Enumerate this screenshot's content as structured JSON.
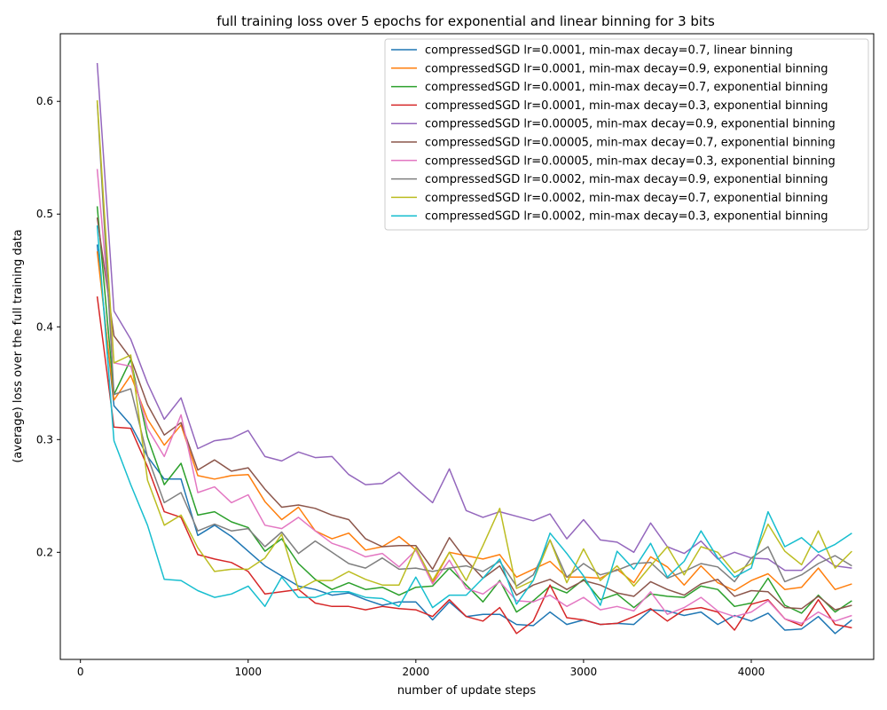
{
  "chart_data": {
    "type": "line",
    "title": "full training loss over 5 epochs for exponential and linear binning for 3 bits",
    "xlabel": "number of update steps",
    "ylabel": "(average) loss over the full training data",
    "xlim": [
      -120,
      4730
    ],
    "ylim": [
      0.105,
      0.66
    ],
    "xticks": [
      0,
      1000,
      2000,
      3000,
      4000
    ],
    "xtick_labels": [
      "0",
      "1000",
      "2000",
      "3000",
      "4000"
    ],
    "yticks": [
      0.2,
      0.3,
      0.4,
      0.5,
      0.6
    ],
    "ytick_labels": [
      "0.2",
      "0.3",
      "0.4",
      "0.5",
      "0.6"
    ],
    "grid": false,
    "legend_position": "top-right",
    "x": [
      100,
      200,
      300,
      400,
      500,
      600,
      700,
      800,
      900,
      1000,
      1100,
      1200,
      1300,
      1400,
      1500,
      1600,
      1700,
      1800,
      1900,
      2000,
      2100,
      2200,
      2300,
      2400,
      2500,
      2600,
      2700,
      2800,
      2900,
      3000,
      3100,
      3200,
      3300,
      3400,
      3500,
      3600,
      3700,
      3800,
      3900,
      4000,
      4100,
      4200,
      4300,
      4400,
      4500,
      4600
    ],
    "series": [
      {
        "name": "compressedSGD lr=0.0001, min-max decay=0.7, linear binning",
        "color": "#1f77b4",
        "values": [
          0.473,
          0.33,
          0.313,
          0.285,
          0.265,
          0.265,
          0.215,
          0.224,
          0.214,
          0.201,
          0.188,
          0.179,
          0.17,
          0.167,
          0.162,
          0.164,
          0.158,
          0.153,
          0.156,
          0.156,
          0.14,
          0.156,
          0.143,
          0.145,
          0.145,
          0.136,
          0.135,
          0.147,
          0.136,
          0.14,
          0.136,
          0.137,
          0.136,
          0.149,
          0.148,
          0.144,
          0.147,
          0.136,
          0.144,
          0.139,
          0.146,
          0.131,
          0.132,
          0.143,
          0.128,
          0.14
        ]
      },
      {
        "name": "compressedSGD lr=0.0001, min-max decay=0.9, exponential binning",
        "color": "#ff7f0e",
        "values": [
          0.467,
          0.335,
          0.357,
          0.318,
          0.295,
          0.313,
          0.268,
          0.265,
          0.268,
          0.269,
          0.245,
          0.229,
          0.24,
          0.219,
          0.212,
          0.217,
          0.202,
          0.205,
          0.214,
          0.202,
          0.173,
          0.2,
          0.197,
          0.194,
          0.198,
          0.178,
          0.185,
          0.192,
          0.178,
          0.178,
          0.177,
          0.185,
          0.173,
          0.196,
          0.187,
          0.171,
          0.188,
          0.173,
          0.166,
          0.175,
          0.181,
          0.167,
          0.169,
          0.186,
          0.167,
          0.172
        ]
      },
      {
        "name": "compressedSGD lr=0.0001, min-max decay=0.7, exponential binning",
        "color": "#2ca02c",
        "values": [
          0.507,
          0.34,
          0.371,
          0.302,
          0.26,
          0.279,
          0.233,
          0.236,
          0.227,
          0.222,
          0.201,
          0.212,
          0.19,
          0.176,
          0.167,
          0.173,
          0.167,
          0.169,
          0.162,
          0.169,
          0.17,
          0.186,
          0.171,
          0.156,
          0.175,
          0.147,
          0.157,
          0.17,
          0.164,
          0.176,
          0.158,
          0.163,
          0.151,
          0.163,
          0.161,
          0.16,
          0.17,
          0.167,
          0.152,
          0.155,
          0.177,
          0.153,
          0.146,
          0.162,
          0.147,
          0.157
        ]
      },
      {
        "name": "compressedSGD lr=0.0001, min-max decay=0.3, exponential binning",
        "color": "#d62728",
        "values": [
          0.427,
          0.311,
          0.31,
          0.276,
          0.236,
          0.231,
          0.198,
          0.194,
          0.191,
          0.183,
          0.163,
          0.165,
          0.167,
          0.155,
          0.152,
          0.152,
          0.149,
          0.152,
          0.15,
          0.149,
          0.143,
          0.158,
          0.143,
          0.139,
          0.151,
          0.128,
          0.139,
          0.171,
          0.142,
          0.14,
          0.136,
          0.137,
          0.143,
          0.15,
          0.139,
          0.149,
          0.151,
          0.147,
          0.131,
          0.154,
          0.158,
          0.141,
          0.135,
          0.158,
          0.136,
          0.133
        ]
      },
      {
        "name": "compressedSGD lr=0.00005, min-max decay=0.9, exponential binning",
        "color": "#9467bd",
        "values": [
          0.634,
          0.414,
          0.389,
          0.35,
          0.318,
          0.337,
          0.292,
          0.299,
          0.301,
          0.308,
          0.285,
          0.281,
          0.289,
          0.284,
          0.285,
          0.269,
          0.26,
          0.261,
          0.271,
          0.257,
          0.244,
          0.274,
          0.237,
          0.231,
          0.236,
          0.232,
          0.228,
          0.234,
          0.212,
          0.229,
          0.211,
          0.209,
          0.2,
          0.226,
          0.205,
          0.199,
          0.21,
          0.194,
          0.2,
          0.195,
          0.194,
          0.184,
          0.184,
          0.198,
          0.188,
          0.186
        ]
      },
      {
        "name": "compressedSGD lr=0.00005, min-max decay=0.7, exponential binning",
        "color": "#8c564b",
        "values": [
          0.497,
          0.392,
          0.372,
          0.331,
          0.304,
          0.315,
          0.273,
          0.282,
          0.272,
          0.275,
          0.256,
          0.24,
          0.242,
          0.239,
          0.233,
          0.229,
          0.212,
          0.205,
          0.206,
          0.206,
          0.185,
          0.213,
          0.193,
          0.177,
          0.188,
          0.162,
          0.171,
          0.176,
          0.167,
          0.175,
          0.171,
          0.164,
          0.161,
          0.174,
          0.167,
          0.162,
          0.172,
          0.176,
          0.161,
          0.166,
          0.165,
          0.151,
          0.15,
          0.161,
          0.149,
          0.153
        ]
      },
      {
        "name": "compressedSGD lr=0.00005, min-max decay=0.3, exponential binning",
        "color": "#e377c2",
        "values": [
          0.54,
          0.368,
          0.365,
          0.31,
          0.285,
          0.322,
          0.253,
          0.258,
          0.244,
          0.251,
          0.224,
          0.221,
          0.231,
          0.219,
          0.208,
          0.203,
          0.196,
          0.199,
          0.187,
          0.202,
          0.172,
          0.193,
          0.168,
          0.163,
          0.174,
          0.157,
          0.156,
          0.162,
          0.152,
          0.16,
          0.149,
          0.152,
          0.148,
          0.165,
          0.145,
          0.151,
          0.16,
          0.148,
          0.143,
          0.147,
          0.157,
          0.141,
          0.137,
          0.147,
          0.139,
          0.144
        ]
      },
      {
        "name": "compressedSGD lr=0.0002, min-max decay=0.9, exponential binning",
        "color": "#7f7f7f",
        "values": [
          0.6,
          0.34,
          0.345,
          0.285,
          0.244,
          0.253,
          0.219,
          0.225,
          0.219,
          0.221,
          0.205,
          0.218,
          0.199,
          0.21,
          0.2,
          0.19,
          0.186,
          0.195,
          0.185,
          0.186,
          0.183,
          0.186,
          0.188,
          0.183,
          0.192,
          0.17,
          0.18,
          0.211,
          0.178,
          0.19,
          0.18,
          0.184,
          0.19,
          0.191,
          0.177,
          0.183,
          0.19,
          0.187,
          0.174,
          0.195,
          0.205,
          0.174,
          0.18,
          0.19,
          0.197,
          0.188
        ]
      },
      {
        "name": "compressedSGD lr=0.0002, min-max decay=0.7, exponential binning",
        "color": "#bcbd22",
        "values": [
          0.601,
          0.368,
          0.375,
          0.264,
          0.224,
          0.233,
          0.204,
          0.183,
          0.185,
          0.185,
          0.195,
          0.216,
          0.167,
          0.175,
          0.175,
          0.183,
          0.176,
          0.171,
          0.171,
          0.204,
          0.175,
          0.2,
          0.175,
          0.206,
          0.239,
          0.168,
          0.175,
          0.211,
          0.173,
          0.203,
          0.175,
          0.188,
          0.17,
          0.188,
          0.205,
          0.18,
          0.205,
          0.2,
          0.182,
          0.19,
          0.225,
          0.201,
          0.189,
          0.219,
          0.186,
          0.201
        ]
      },
      {
        "name": "compressedSGD lr=0.0002, min-max decay=0.3, exponential binning",
        "color": "#17becf",
        "values": [
          0.49,
          0.299,
          0.26,
          0.224,
          0.176,
          0.175,
          0.166,
          0.16,
          0.163,
          0.17,
          0.152,
          0.178,
          0.16,
          0.16,
          0.165,
          0.165,
          0.16,
          0.159,
          0.152,
          0.178,
          0.151,
          0.162,
          0.162,
          0.177,
          0.194,
          0.154,
          0.175,
          0.217,
          0.199,
          0.179,
          0.153,
          0.201,
          0.185,
          0.208,
          0.178,
          0.192,
          0.219,
          0.195,
          0.178,
          0.186,
          0.236,
          0.205,
          0.213,
          0.2,
          0.207,
          0.217
        ]
      }
    ]
  }
}
